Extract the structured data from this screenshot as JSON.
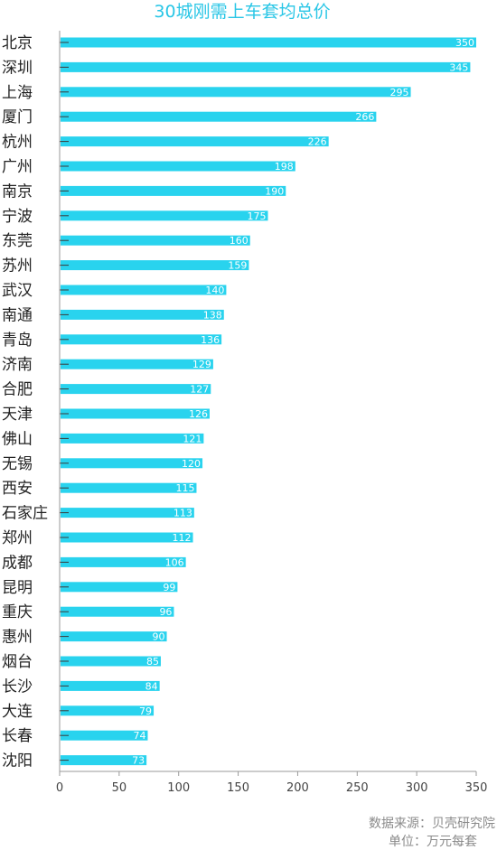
{
  "chart_data": {
    "type": "bar",
    "orientation": "horizontal",
    "title": "30城刚需上车套均总价",
    "categories": [
      "北京",
      "深圳",
      "上海",
      "厦门",
      "杭州",
      "广州",
      "南京",
      "宁波",
      "东莞",
      "苏州",
      "武汉",
      "南通",
      "青岛",
      "济南",
      "合肥",
      "天津",
      "佛山",
      "无锡",
      "西安",
      "石家庄",
      "郑州",
      "成都",
      "昆明",
      "重庆",
      "惠州",
      "烟台",
      "长沙",
      "大连",
      "长春",
      "沈阳"
    ],
    "values": [
      350,
      345,
      295,
      266,
      226,
      198,
      190,
      175,
      160,
      159,
      140,
      138,
      136,
      129,
      127,
      126,
      121,
      120,
      115,
      113,
      112,
      106,
      99,
      96,
      90,
      85,
      84,
      79,
      74,
      73
    ],
    "xlim": [
      0,
      350
    ],
    "xticks": [
      0,
      50,
      100,
      150,
      200,
      250,
      300,
      350
    ],
    "grid": false,
    "bar_color": "#29d3ee",
    "title_color": "#29c6e6"
  },
  "notes": {
    "source": "数据来源：贝壳研究院",
    "unit": "单位：万元每套"
  }
}
